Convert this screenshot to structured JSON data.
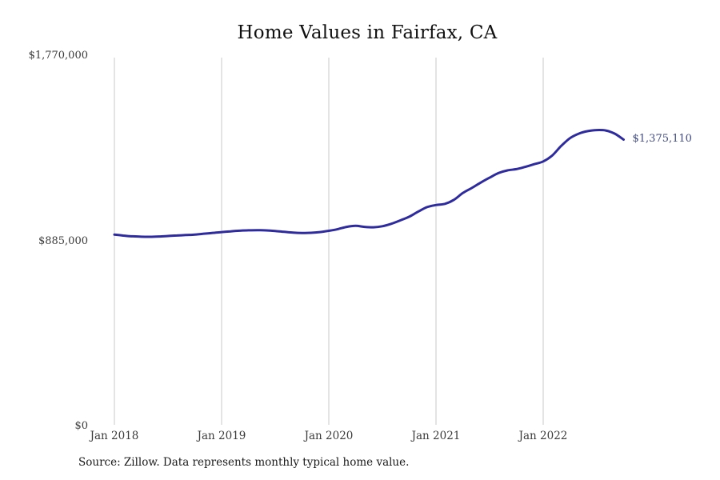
{
  "title": "Home Values in Fairfax, CA",
  "source_note": "Source: Zillow. Data represents monthly typical home value.",
  "y_axis": {
    "labels": [
      "$1,770,000",
      "$885,000",
      "$0"
    ]
  },
  "x_axis": {
    "labels": [
      "Jan 2018",
      "Jan 2019",
      "Jan 2020",
      "Jan 2021",
      "Jan 2022"
    ]
  },
  "colors": {
    "line": "#2e2b9f",
    "end_label": "#3f4a83",
    "grid": "#c9c9c9",
    "axis_text": "#3b3b3b",
    "title_text": "#111111",
    "background": "#ffffff"
  },
  "chart_data": {
    "type": "line",
    "title": "Home Values in Fairfax, CA",
    "xlabel": "",
    "ylabel": "",
    "ylim": [
      0,
      1770000
    ],
    "yticks": [
      0,
      885000,
      1770000
    ],
    "ytick_labels": [
      "$0",
      "$885,000",
      "$1,770,000"
    ],
    "xtick_labels": [
      "Jan 2018",
      "Jan 2019",
      "Jan 2020",
      "Jan 2021",
      "Jan 2022"
    ],
    "grid": "vertical-only",
    "legend": false,
    "end_label": "$1,375,110",
    "end_value": 1375110,
    "x": [
      "2018-01",
      "2018-02",
      "2018-03",
      "2018-04",
      "2018-05",
      "2018-06",
      "2018-07",
      "2018-08",
      "2018-09",
      "2018-10",
      "2018-11",
      "2018-12",
      "2019-01",
      "2019-02",
      "2019-03",
      "2019-04",
      "2019-05",
      "2019-06",
      "2019-07",
      "2019-08",
      "2019-09",
      "2019-10",
      "2019-11",
      "2019-12",
      "2020-01",
      "2020-02",
      "2020-03",
      "2020-04",
      "2020-05",
      "2020-06",
      "2020-07",
      "2020-08",
      "2020-09",
      "2020-10",
      "2020-11",
      "2020-12",
      "2021-01",
      "2021-02",
      "2021-03",
      "2021-04",
      "2021-05",
      "2021-06",
      "2021-07",
      "2021-08",
      "2021-09",
      "2021-10",
      "2021-11",
      "2021-12",
      "2022-01",
      "2022-02",
      "2022-03",
      "2022-04",
      "2022-05",
      "2022-06",
      "2022-07",
      "2022-08",
      "2022-09",
      "2022-10"
    ],
    "values": [
      918000,
      913000,
      909500,
      907500,
      907000,
      908500,
      911000,
      913500,
      915500,
      918000,
      922000,
      926000,
      930000,
      933500,
      936500,
      938500,
      939000,
      938000,
      935000,
      931000,
      927500,
      925500,
      926500,
      930000,
      936000,
      944000,
      955000,
      960000,
      955000,
      953000,
      958000,
      970000,
      986000,
      1004000,
      1028000,
      1050000,
      1060000,
      1066000,
      1085000,
      1118000,
      1142000,
      1168000,
      1192000,
      1214000,
      1227000,
      1233000,
      1244000,
      1257000,
      1270000,
      1298000,
      1344000,
      1382000,
      1404000,
      1416000,
      1421000,
      1419000,
      1404000,
      1375110
    ]
  }
}
